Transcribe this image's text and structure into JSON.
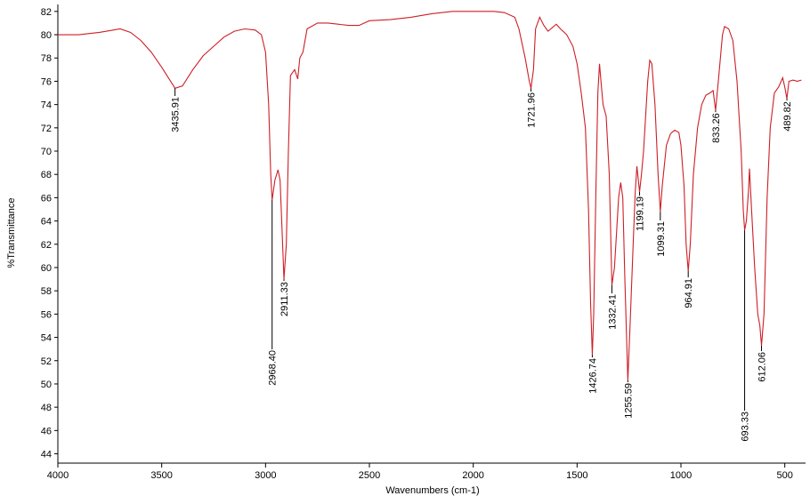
{
  "chart_data": {
    "type": "line",
    "x_label": "Wavenumbers (cm-1)",
    "y_label": "%Transmittance",
    "color": "#cc1f26",
    "xlim": [
      4000,
      400
    ],
    "ylim": [
      43.2,
      82.6
    ],
    "xticks": [
      4000,
      3500,
      3000,
      2500,
      2000,
      1500,
      1000,
      500
    ],
    "yticks": [
      44,
      46,
      48,
      50,
      52,
      54,
      56,
      58,
      60,
      62,
      64,
      66,
      68,
      70,
      72,
      74,
      76,
      78,
      80,
      82
    ],
    "x": [
      4000,
      3900,
      3800,
      3700,
      3650,
      3600,
      3550,
      3500,
      3450,
      3435.91,
      3400,
      3350,
      3300,
      3250,
      3200,
      3150,
      3100,
      3050,
      3020,
      3000,
      2985,
      2975,
      2968.4,
      2955,
      2940,
      2930,
      2920,
      2911.33,
      2900,
      2890,
      2880,
      2860,
      2845,
      2835,
      2820,
      2800,
      2750,
      2700,
      2600,
      2550,
      2500,
      2400,
      2300,
      2200,
      2100,
      2000,
      1900,
      1850,
      1800,
      1780,
      1750,
      1730,
      1721.96,
      1710,
      1700,
      1680,
      1660,
      1640,
      1620,
      1600,
      1580,
      1550,
      1520,
      1500,
      1480,
      1460,
      1445,
      1435,
      1426.74,
      1420,
      1410,
      1400,
      1392,
      1385,
      1375,
      1360,
      1345,
      1332.41,
      1320,
      1300,
      1290,
      1280,
      1270,
      1255.59,
      1245,
      1230,
      1220,
      1212,
      1205,
      1199.19,
      1190,
      1180,
      1160,
      1150,
      1140,
      1125,
      1110,
      1099.31,
      1090,
      1070,
      1050,
      1030,
      1010,
      1000,
      985,
      975,
      964.91,
      955,
      940,
      920,
      900,
      880,
      860,
      845,
      833.26,
      820,
      800,
      790,
      770,
      750,
      730,
      710,
      700,
      693.33,
      685,
      675,
      670,
      660,
      645,
      630,
      620,
      612.06,
      600,
      585,
      570,
      550,
      530,
      510,
      500,
      489.82,
      480,
      460,
      440,
      420
    ],
    "values": [
      80.0,
      80.0,
      80.2,
      80.5,
      80.2,
      79.5,
      78.5,
      77.2,
      75.8,
      75.4,
      75.6,
      77.0,
      78.2,
      79.0,
      79.8,
      80.3,
      80.5,
      80.4,
      80.0,
      78.5,
      74,
      68,
      65.8,
      67.5,
      68.4,
      67.5,
      63,
      59,
      62,
      70,
      76.5,
      77,
      76.2,
      78,
      78.5,
      80.5,
      81,
      81,
      80.8,
      80.8,
      81.2,
      81.3,
      81.5,
      81.8,
      82.0,
      82.0,
      82.0,
      81.9,
      81.5,
      80.5,
      78,
      76,
      75.4,
      77,
      80.5,
      81.5,
      80.8,
      80.3,
      80.6,
      80.9,
      80.5,
      80,
      79,
      77.5,
      75,
      72,
      65,
      57,
      52.5,
      56,
      66,
      75,
      77.5,
      76,
      74,
      73,
      68,
      58.5,
      60,
      66,
      67.3,
      66,
      59,
      50.3,
      55,
      62,
      66.5,
      68.7,
      67.5,
      66.5,
      68,
      70,
      76,
      77.8,
      77.5,
      74,
      68,
      64.8,
      67,
      70.5,
      71.5,
      71.8,
      71.6,
      70.5,
      67,
      62,
      59.7,
      62,
      68,
      72,
      74,
      74.8,
      75,
      75.2,
      73.5,
      76,
      80,
      80.7,
      80.5,
      79.5,
      76,
      70,
      65,
      63.2,
      64,
      66.5,
      68.5,
      65,
      60,
      56,
      55,
      53.3,
      56,
      66,
      72,
      75,
      75.5,
      76.3,
      75.5,
      74.5,
      76,
      76.1,
      76,
      76.1
    ],
    "annotations": [
      {
        "x": 3435.91,
        "label": "3435.91"
      },
      {
        "x": 2968.4,
        "label": "2968.40"
      },
      {
        "x": 2911.33,
        "label": "2911.33"
      },
      {
        "x": 1721.96,
        "label": "1721.96"
      },
      {
        "x": 1426.74,
        "label": "1426.74"
      },
      {
        "x": 1332.41,
        "label": "1332.41"
      },
      {
        "x": 1255.59,
        "label": "1255.59"
      },
      {
        "x": 1199.19,
        "label": "1199.19"
      },
      {
        "x": 1099.31,
        "label": "1099.31"
      },
      {
        "x": 964.91,
        "label": "964.91"
      },
      {
        "x": 833.26,
        "label": "833.26"
      },
      {
        "x": 693.33,
        "label": "693.33"
      },
      {
        "x": 612.06,
        "label": "612.06"
      },
      {
        "x": 489.82,
        "label": "489.82"
      }
    ]
  }
}
